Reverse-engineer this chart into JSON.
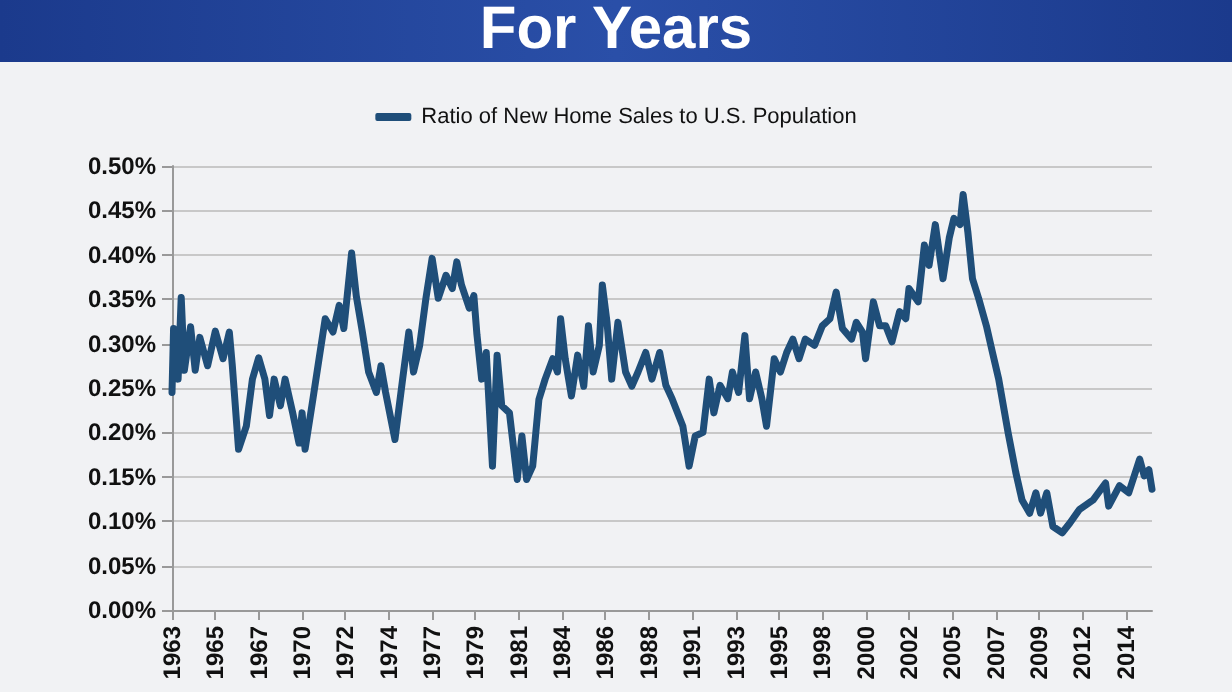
{
  "chart_data": {
    "type": "line",
    "title": "For Years",
    "legend": "top",
    "grid": "y",
    "marker": "none",
    "line_style": "solid",
    "xlim": [
      "1963-01",
      "2015-10"
    ],
    "xticks": [
      {
        "value": "1963-01",
        "label": "1963"
      },
      {
        "value": "1965-05",
        "label": "1965"
      },
      {
        "value": "1967-09",
        "label": "1967"
      },
      {
        "value": "1970-01",
        "label": "1970"
      },
      {
        "value": "1972-05",
        "label": "1972"
      },
      {
        "value": "1974-09",
        "label": "1974"
      },
      {
        "value": "1977-01",
        "label": "1977"
      },
      {
        "value": "1979-05",
        "label": "1979"
      },
      {
        "value": "1981-09",
        "label": "1981"
      },
      {
        "value": "1984-01",
        "label": "1984"
      },
      {
        "value": "1986-05",
        "label": "1986"
      },
      {
        "value": "1988-09",
        "label": "1988"
      },
      {
        "value": "1991-01",
        "label": "1991"
      },
      {
        "value": "1993-05",
        "label": "1993"
      },
      {
        "value": "1995-09",
        "label": "1995"
      },
      {
        "value": "1998-01",
        "label": "1998"
      },
      {
        "value": "2000-05",
        "label": "2000"
      },
      {
        "value": "2002-09",
        "label": "2002"
      },
      {
        "value": "2005-01",
        "label": "2005"
      },
      {
        "value": "2007-05",
        "label": "2007"
      },
      {
        "value": "2009-09",
        "label": "2009"
      },
      {
        "value": "2012-01",
        "label": "2012"
      },
      {
        "value": "2014-05",
        "label": "2014"
      }
    ],
    "ylim": [
      0,
      0.5
    ],
    "yticks": [
      {
        "value": 0,
        "label": "0.00%"
      },
      {
        "value": 0.05,
        "label": "0.05%"
      },
      {
        "value": 0.1,
        "label": "0.10%"
      },
      {
        "value": 0.15,
        "label": "0.15%"
      },
      {
        "value": 0.2,
        "label": "0.20%"
      },
      {
        "value": 0.25,
        "label": "0.25%"
      },
      {
        "value": 0.3,
        "label": "0.30%"
      },
      {
        "value": 0.35,
        "label": "0.35%"
      },
      {
        "value": 0.4,
        "label": "0.40%"
      },
      {
        "value": 0.45,
        "label": "0.45%"
      },
      {
        "value": 0.5,
        "label": "0.50%"
      }
    ],
    "series": [
      {
        "name": "Ratio of New Home Sales to U.S. Population",
        "color": "#1f4e79",
        "x": [
          "1963-01",
          "1963-02",
          "1963-05",
          "1963-07",
          "1963-09",
          "1964-01",
          "1964-04",
          "1964-07",
          "1964-12",
          "1965-05",
          "1965-10",
          "1966-02",
          "1966-04",
          "1966-08",
          "1967-01",
          "1967-05",
          "1967-09",
          "1968-01",
          "1968-04",
          "1968-07",
          "1968-11",
          "1969-02",
          "1969-07",
          "1969-11",
          "1970-01",
          "1970-03",
          "1970-08",
          "1970-12",
          "1971-04",
          "1971-09",
          "1972-01",
          "1972-04",
          "1972-09",
          "1972-12",
          "1973-04",
          "1973-08",
          "1974-01",
          "1974-04",
          "1974-07",
          "1975-01",
          "1975-06",
          "1975-10",
          "1976-01",
          "1976-05",
          "1976-09",
          "1977-01",
          "1977-05",
          "1977-10",
          "1978-02",
          "1978-05",
          "1978-08",
          "1979-01",
          "1979-04",
          "1979-06",
          "1979-09",
          "1979-12",
          "1980-04",
          "1980-07",
          "1980-10",
          "1981-03",
          "1981-08",
          "1981-11",
          "1982-02",
          "1982-06",
          "1982-10",
          "1983-02",
          "1983-07",
          "1983-10",
          "1983-12",
          "1984-03",
          "1984-07",
          "1984-11",
          "1985-03",
          "1985-06",
          "1985-09",
          "1986-01",
          "1986-03",
          "1986-06",
          "1986-09",
          "1987-01",
          "1987-06",
          "1987-10",
          "1988-02",
          "1988-07",
          "1988-11",
          "1989-04",
          "1989-08",
          "1989-12",
          "1990-07",
          "1990-11",
          "1991-03",
          "1991-08",
          "1991-12",
          "1992-03",
          "1992-07",
          "1992-12",
          "1993-03",
          "1993-07",
          "1993-11",
          "1994-02",
          "1994-06",
          "1994-10",
          "1995-01",
          "1995-06",
          "1995-10",
          "1996-02",
          "1996-06",
          "1996-10",
          "1997-02",
          "1997-08",
          "1998-01",
          "1998-06",
          "1998-10",
          "1999-02",
          "1999-08",
          "1999-11",
          "2000-03",
          "2000-05",
          "2000-10",
          "2001-02",
          "2001-06",
          "2001-10",
          "2002-03",
          "2002-07",
          "2002-09",
          "2003-03",
          "2003-07",
          "2003-10",
          "2004-02",
          "2004-07",
          "2004-11",
          "2005-02",
          "2005-06",
          "2005-08",
          "2005-11",
          "2006-02",
          "2006-06",
          "2006-11",
          "2007-03",
          "2007-07",
          "2008-01",
          "2008-06",
          "2008-10",
          "2009-03",
          "2009-07",
          "2009-10",
          "2010-02",
          "2010-06",
          "2010-12",
          "2011-05",
          "2011-11",
          "2012-08",
          "2013-04",
          "2013-06",
          "2014-01",
          "2014-07",
          "2015-02",
          "2015-05",
          "2015-08",
          "2015-10"
        ],
        "values": [
          0.245,
          0.317,
          0.26,
          0.352,
          0.27,
          0.319,
          0.27,
          0.307,
          0.275,
          0.314,
          0.283,
          0.313,
          0.275,
          0.181,
          0.207,
          0.26,
          0.284,
          0.26,
          0.219,
          0.26,
          0.23,
          0.26,
          0.222,
          0.188,
          0.222,
          0.181,
          0.237,
          0.283,
          0.328,
          0.313,
          0.343,
          0.317,
          0.402,
          0.354,
          0.313,
          0.268,
          0.245,
          0.275,
          0.245,
          0.192,
          0.26,
          0.313,
          0.268,
          0.298,
          0.351,
          0.396,
          0.351,
          0.377,
          0.362,
          0.392,
          0.366,
          0.34,
          0.354,
          0.31,
          0.26,
          0.29,
          0.162,
          0.287,
          0.23,
          0.222,
          0.147,
          0.196,
          0.147,
          0.162,
          0.237,
          0.26,
          0.283,
          0.268,
          0.328,
          0.283,
          0.241,
          0.287,
          0.252,
          0.32,
          0.268,
          0.298,
          0.366,
          0.324,
          0.26,
          0.324,
          0.268,
          0.252,
          0.268,
          0.29,
          0.26,
          0.29,
          0.253,
          0.238,
          0.207,
          0.162,
          0.196,
          0.2,
          0.26,
          0.222,
          0.253,
          0.238,
          0.268,
          0.245,
          0.309,
          0.238,
          0.268,
          0.238,
          0.207,
          0.283,
          0.268,
          0.29,
          0.305,
          0.283,
          0.305,
          0.298,
          0.32,
          0.328,
          0.358,
          0.317,
          0.305,
          0.324,
          0.313,
          0.283,
          0.347,
          0.32,
          0.32,
          0.302,
          0.336,
          0.328,
          0.362,
          0.347,
          0.411,
          0.388,
          0.434,
          0.373,
          0.419,
          0.441,
          0.434,
          0.468,
          0.426,
          0.373,
          0.351,
          0.32,
          0.29,
          0.26,
          0.2,
          0.155,
          0.124,
          0.109,
          0.132,
          0.109,
          0.132,
          0.094,
          0.087,
          0.098,
          0.113,
          0.124,
          0.143,
          0.117,
          0.14,
          0.132,
          0.17,
          0.151,
          0.158,
          0.136
        ]
      }
    ]
  }
}
